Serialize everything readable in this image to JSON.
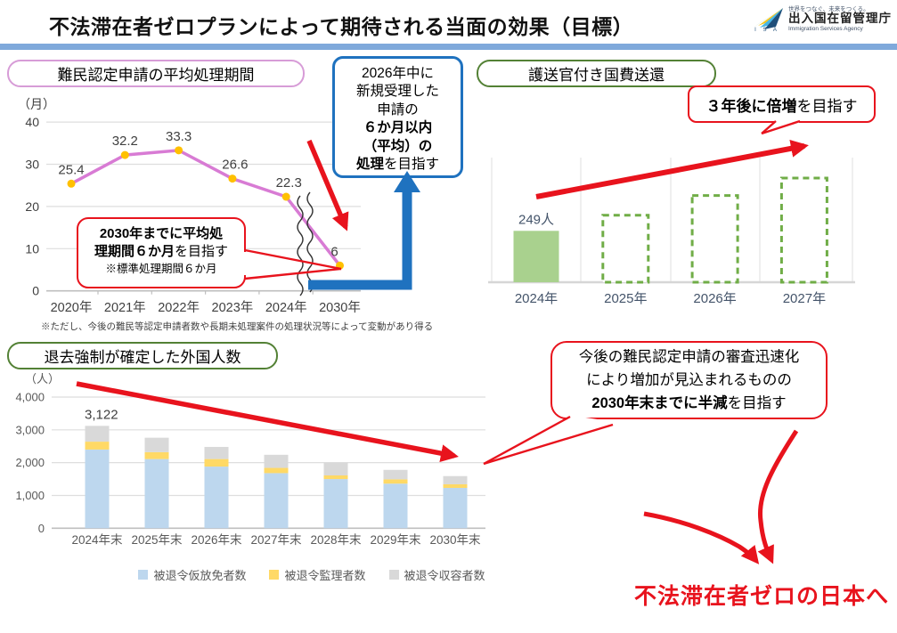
{
  "header": {
    "title": "不法滞在者ゼロプランによって期待される当面の効果（目標）",
    "logo": {
      "tagline": "世界をつなぐ、未来をつくる。",
      "org": "出入国在留管理庁",
      "org_en": "Immigration Services Agency",
      "acronym": "I S A"
    }
  },
  "refugee_section": {
    "title": "難民認定申請の平均処理期間",
    "footnote": "※ただし、今後の難民等認定申請者数や長期未処理案件の処理状況等によって変動があり得る",
    "goal_box": {
      "l1": "2026年中に",
      "l2": "新規受理した",
      "l3": "申請の",
      "l4_bold": "６か月以内",
      "l5_bold": "（平均）の",
      "l6_bold": "処理",
      "l6_rest": "を目指す"
    },
    "callout": {
      "l1_bold": "2030年までに平均処",
      "l2_bold": "理期間６か月",
      "l2_rest": "を目指す",
      "note": "※標準処理期間６か月"
    }
  },
  "escort_section": {
    "title": "護送官付き国費送還",
    "callout": {
      "bold": "３年後に倍増",
      "rest": "を目指す"
    }
  },
  "deport_section": {
    "title": "退去強制が確定した外国人数",
    "callout": {
      "l1": "今後の難民認定申請の審査迅速化",
      "l2": "により増加が見込まれるものの",
      "l3_bold": "2030年末までに半減",
      "l3_rest": "を目指す"
    }
  },
  "footer": {
    "slogan": "不法滞在者ゼロの日本へ"
  },
  "colors": {
    "accent_red": "#E8131D",
    "accent_blue": "#1F72BF",
    "title_band": "#7FA9DB",
    "pill_pink": "#D79CD7",
    "pill_green": "#538135"
  },
  "chart_data": [
    {
      "id": "refugee_processing_period",
      "type": "line",
      "title": "難民認定申請の平均処理期間",
      "ylabel": "（月）",
      "ylim": [
        0,
        40
      ],
      "yticks": [
        0,
        10,
        20,
        30,
        40
      ],
      "categories": [
        "2020年",
        "2021年",
        "2022年",
        "2023年",
        "2024年",
        "2030年"
      ],
      "values": [
        25.4,
        32.2,
        33.3,
        26.6,
        22.3,
        6
      ],
      "axis_break_between": [
        "2024年",
        "2030年"
      ],
      "grid": true,
      "line_color": "#D87BD4",
      "marker_color": "#FFC000"
    },
    {
      "id": "escorted_government_repatriation",
      "type": "bar",
      "title": "護送官付き国費送還",
      "categories": [
        "2024年",
        "2025年",
        "2026年",
        "2027年"
      ],
      "values": [
        249,
        325,
        420,
        505
      ],
      "values_estimated": [
        false,
        true,
        true,
        true
      ],
      "value_labels": [
        "249人",
        "",
        "",
        ""
      ],
      "bar_styles": [
        "solid",
        "dashed",
        "dashed",
        "dashed"
      ],
      "solid_color": "#A9D18E",
      "dashed_color": "#70AD47",
      "grid": true
    },
    {
      "id": "confirmed_deportation_foreigners",
      "type": "bar",
      "stacked": true,
      "title": "退去強制が確定した外国人数",
      "ylabel": "（人）",
      "ylim": [
        0,
        4000
      ],
      "yticks": [
        "0",
        "1,000",
        "2,000",
        "3,000",
        "4,000"
      ],
      "categories": [
        "2024年末",
        "2025年末",
        "2026年末",
        "2027年末",
        "2028年末",
        "2029年末",
        "2030年末"
      ],
      "series": [
        {
          "name": "被退令仮放免者数",
          "color": "#BDD7EE",
          "values": [
            2400,
            2110,
            1880,
            1680,
            1500,
            1360,
            1230
          ]
        },
        {
          "name": "被退令監理者数",
          "color": "#FFD966",
          "values": [
            240,
            210,
            230,
            160,
            110,
            130,
            110
          ]
        },
        {
          "name": "被退令収容者数",
          "color": "#D9D9D9",
          "values": [
            482,
            440,
            370,
            400,
            390,
            290,
            250
          ]
        }
      ],
      "totals": [
        3122,
        2760,
        2480,
        2240,
        2000,
        1780,
        1590
      ],
      "annotation": "3,122",
      "legend_position": "bottom",
      "grid": true
    }
  ]
}
